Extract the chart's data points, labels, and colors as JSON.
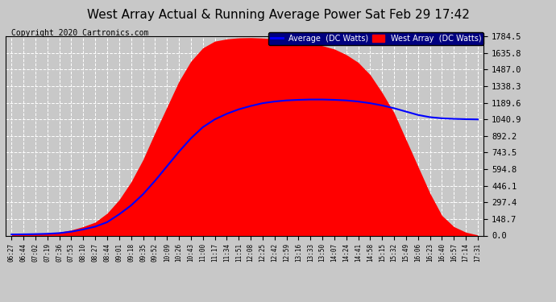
{
  "title": "West Array Actual & Running Average Power Sat Feb 29 17:42",
  "copyright": "Copyright 2020 Cartronics.com",
  "ylabel_values": [
    0.0,
    148.7,
    297.4,
    446.1,
    594.8,
    743.5,
    892.2,
    1040.9,
    1189.6,
    1338.3,
    1487.0,
    1635.8,
    1784.5
  ],
  "ylim": [
    0,
    1784.5
  ],
  "legend_avg_label": "Average  (DC Watts)",
  "legend_west_label": "West Array  (DC Watts)",
  "avg_color": "#0000ff",
  "west_fill_color": "#ff0000",
  "background_color": "#c8c8c8",
  "plot_bg_color": "#c8c8c8",
  "grid_color": "#ffffff",
  "title_color": "#000000",
  "tick_labels": [
    "06:27",
    "06:44",
    "07:02",
    "07:19",
    "07:36",
    "07:53",
    "08:10",
    "08:27",
    "08:44",
    "09:01",
    "09:18",
    "09:35",
    "09:52",
    "10:09",
    "10:26",
    "10:43",
    "11:00",
    "11:17",
    "11:34",
    "11:51",
    "12:08",
    "12:25",
    "12:42",
    "12:59",
    "13:16",
    "13:33",
    "13:50",
    "14:07",
    "14:24",
    "14:41",
    "14:58",
    "15:15",
    "15:32",
    "15:49",
    "16:06",
    "16:23",
    "16:40",
    "16:57",
    "17:14",
    "17:31"
  ],
  "west_array_values": [
    10,
    12,
    15,
    20,
    30,
    50,
    80,
    120,
    200,
    320,
    480,
    680,
    920,
    1150,
    1380,
    1560,
    1680,
    1740,
    1760,
    1770,
    1772,
    1768,
    1760,
    1750,
    1740,
    1720,
    1700,
    1670,
    1620,
    1550,
    1440,
    1280,
    1100,
    860,
    620,
    380,
    180,
    80,
    30,
    5
  ],
  "avg_values": [
    10,
    11,
    13,
    16,
    22,
    35,
    55,
    80,
    120,
    190,
    270,
    370,
    490,
    620,
    750,
    870,
    970,
    1040,
    1090,
    1130,
    1160,
    1185,
    1200,
    1210,
    1215,
    1218,
    1218,
    1215,
    1210,
    1200,
    1185,
    1165,
    1140,
    1110,
    1080,
    1060,
    1050,
    1045,
    1042,
    1040
  ]
}
